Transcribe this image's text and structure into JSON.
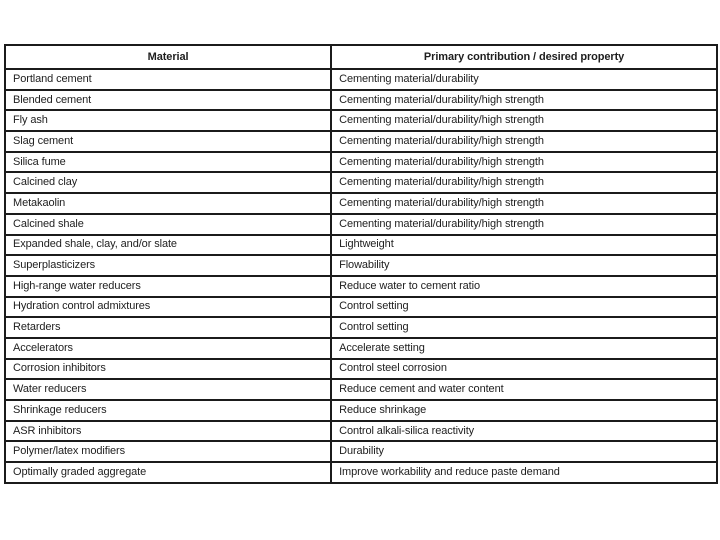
{
  "page": {
    "background_color": "#ffffff",
    "text_color": "#1e1e1e",
    "border_color": "#1b1b1b"
  },
  "table": {
    "headers": [
      "Material",
      "Primary contribution / desired property"
    ],
    "rows": [
      {
        "material": "Portland cement",
        "property": "Cementing material/durability"
      },
      {
        "material": "Blended cement",
        "property": "Cementing material/durability/high strength"
      },
      {
        "material": "Fly ash",
        "property": "Cementing material/durability/high strength"
      },
      {
        "material": "Slag cement",
        "property": "Cementing material/durability/high strength"
      },
      {
        "material": "Silica fume",
        "property": "Cementing material/durability/high strength"
      },
      {
        "material": "Calcined clay",
        "property": "Cementing material/durability/high strength"
      },
      {
        "material": "Metakaolin",
        "property": "Cementing material/durability/high strength"
      },
      {
        "material": "Calcined shale",
        "property": "Cementing material/durability/high strength"
      },
      {
        "material": "Expanded shale, clay, and/or slate",
        "property": "Lightweight"
      },
      {
        "material": "Superplasticizers",
        "property": "Flowability"
      },
      {
        "material": "High-range water reducers",
        "property": "Reduce water to cement ratio"
      },
      {
        "material": "Hydration control admixtures",
        "property": "Control setting"
      },
      {
        "material": "Retarders",
        "property": "Control setting"
      },
      {
        "material": "Accelerators",
        "property": "Accelerate setting"
      },
      {
        "material": "Corrosion inhibitors",
        "property": "Control steel corrosion"
      },
      {
        "material": "Water reducers",
        "property": "Reduce cement and water content"
      },
      {
        "material": "Shrinkage reducers",
        "property": "Reduce shrinkage"
      },
      {
        "material": "ASR inhibitors",
        "property": "Control alkali-silica reactivity"
      },
      {
        "material": "Polymer/latex modifiers",
        "property": "Durability"
      },
      {
        "material": "Optimally graded aggregate",
        "property": "Improve workability and reduce paste demand"
      }
    ]
  }
}
